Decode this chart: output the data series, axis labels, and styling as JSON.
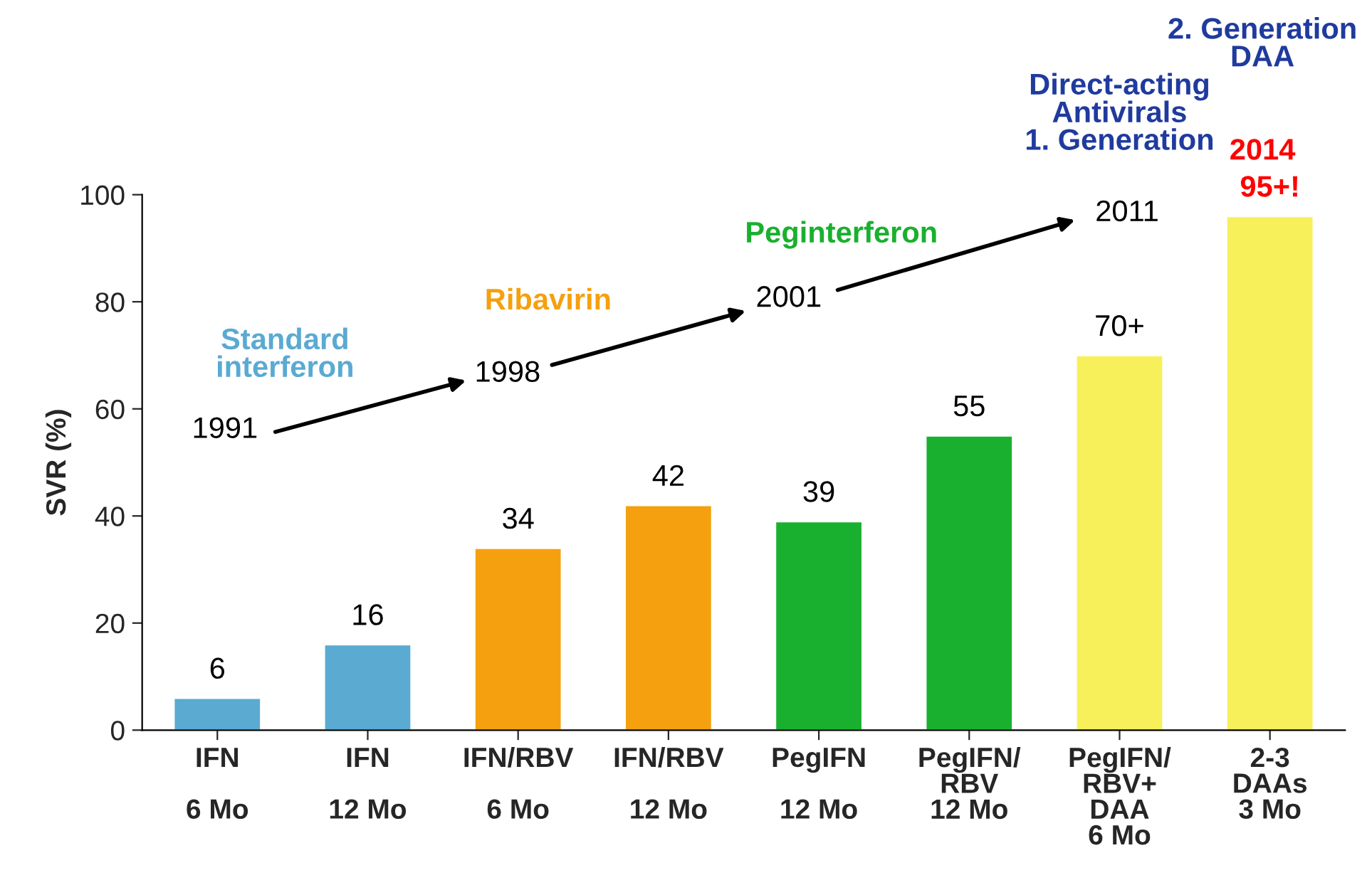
{
  "chart_data": {
    "type": "bar",
    "ylabel": "SVR (%)",
    "categories": [
      "IFN\n\n6 Mo",
      "IFN\n\n12 Mo",
      "IFN/RBV\n\n6 Mo",
      "IFN/RBV\n\n12 Mo",
      "PegIFN\n\n12 Mo",
      "PegIFN/\nRBV\n12 Mo",
      "PegIFN/\nRBV+\nDAA\n6 Mo",
      "2-3\nDAAs\n3 Mo"
    ],
    "values": [
      6,
      16,
      34,
      42,
      39,
      55,
      70,
      96
    ],
    "colors": [
      "#5aaad2",
      "#5aaad2",
      "#f5a00f",
      "#f5a00f",
      "#1ab02f",
      "#1ab02f",
      "#f7f05a",
      "#f7f05a"
    ],
    "value_labels": [
      "6",
      "16",
      "34",
      "42",
      "39",
      "55",
      "70+",
      "95+!"
    ],
    "ylim": [
      0,
      100
    ],
    "yticks": [
      0,
      20,
      40,
      60,
      80,
      100
    ],
    "grid": false,
    "annotations": [
      "Standard\ninterferon",
      "Ribavirin",
      "Peginterferon",
      "Direct-acting\nAntivirals\n1. Generation",
      "2. Generation\nDAA",
      "2014",
      "1991",
      "1998",
      "2001",
      "2011"
    ]
  }
}
